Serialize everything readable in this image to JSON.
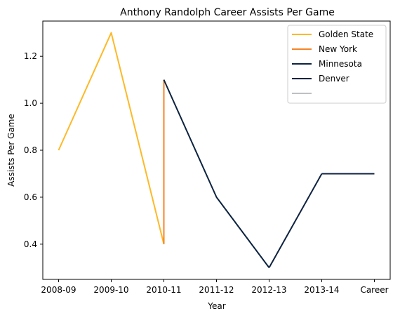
{
  "chart_data": {
    "type": "line",
    "title": "Anthony Randolph Career Assists Per Game",
    "xlabel": "Year",
    "ylabel": "Assists Per Game",
    "categories": [
      "2008-09",
      "2009-10",
      "2010-11",
      "2011-12",
      "2012-13",
      "2013-14",
      "Career"
    ],
    "ylim": [
      0.25,
      1.35
    ],
    "yticks": [
      0.4,
      0.6,
      0.8,
      1.0,
      1.2
    ],
    "ytick_labels": [
      "0.4",
      "0.6",
      "0.8",
      "1.0",
      "1.2"
    ],
    "legend_position": "top-right",
    "grid": false,
    "series": [
      {
        "name": "Golden State",
        "color": "#FDB927",
        "points": [
          [
            0,
            0.8
          ],
          [
            1,
            1.3
          ],
          [
            2,
            0.4
          ]
        ]
      },
      {
        "name": "New York",
        "color": "#F58426",
        "points": [
          [
            2,
            0.4
          ],
          [
            2,
            1.1
          ]
        ]
      },
      {
        "name": "Minnesota",
        "color": "#0C2340",
        "points": [
          [
            2,
            1.1
          ],
          [
            3,
            0.6
          ],
          [
            4,
            0.3
          ]
        ]
      },
      {
        "name": "Denver",
        "color": "#0E2240",
        "points": [
          [
            4,
            0.3
          ],
          [
            5,
            0.7
          ]
        ]
      },
      {
        "name": "",
        "color": "#0E2240",
        "points": [
          [
            5,
            0.7
          ],
          [
            6,
            0.7
          ]
        ],
        "legend_color": "#BEC0C2"
      }
    ]
  }
}
